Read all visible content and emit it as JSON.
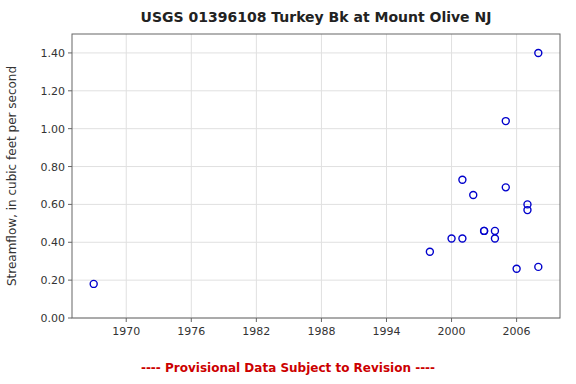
{
  "chart_data": {
    "type": "scatter",
    "title": "USGS 01396108 Turkey Bk at Mount Olive NJ",
    "ylabel": "Streamflow, in cubic feet per second",
    "annotations": [
      {
        "text": "---- Provisional Data Subject to Revision ----",
        "color": "#cc0000"
      }
    ],
    "x": [
      1967,
      1998,
      2000,
      2001,
      2001,
      2002,
      2003,
      2003,
      2004,
      2004,
      2005,
      2005,
      2006,
      2007,
      2007,
      2008,
      2008
    ],
    "values": [
      0.18,
      0.35,
      0.42,
      0.42,
      0.73,
      0.65,
      0.46,
      0.46,
      0.42,
      0.46,
      0.69,
      1.04,
      0.26,
      0.57,
      0.6,
      0.27,
      1.4
    ],
    "color": "#0000cc",
    "marker": "circle",
    "xlim": [
      1965,
      2010
    ],
    "ylim": [
      0,
      1.5
    ],
    "xticks": [
      1970,
      1976,
      1982,
      1988,
      1994,
      2000,
      2006
    ],
    "yticks": [
      {
        "value": 0,
        "label": "0.00"
      },
      {
        "value": 0.2,
        "label": "0.20"
      },
      {
        "value": 0.4,
        "label": "0.40"
      },
      {
        "value": 0.6,
        "label": "0.60"
      },
      {
        "value": 0.8,
        "label": "0.80"
      },
      {
        "value": 1,
        "label": "1.00"
      },
      {
        "value": 1.2,
        "label": "1.20"
      },
      {
        "value": 1.4,
        "label": "1.40"
      }
    ],
    "grid": true
  }
}
